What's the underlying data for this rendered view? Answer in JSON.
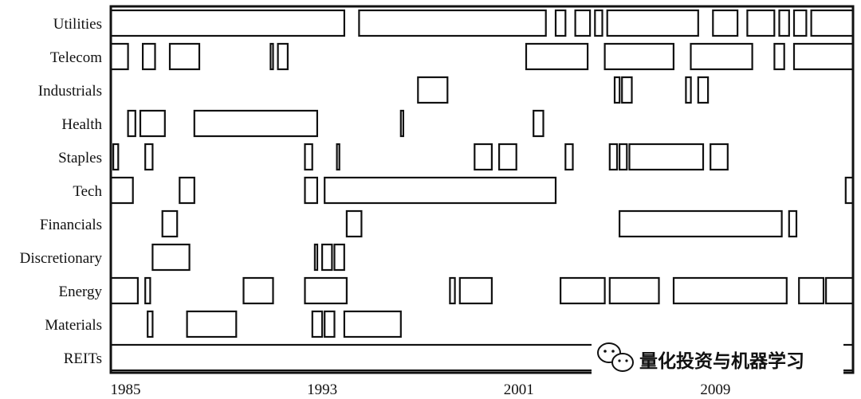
{
  "chart_data": {
    "type": "heatmap",
    "sectors": [
      "Utilities",
      "Telecom",
      "Industrials",
      "Health",
      "Staples",
      "Tech",
      "Financials",
      "Discretionary",
      "Energy",
      "Materials",
      "REITs"
    ],
    "x_ticks": [
      "1985",
      "1993",
      "2001",
      "2009"
    ],
    "x_tick_values": [
      1985,
      1993,
      2001,
      2009
    ],
    "xlim": [
      1984.4,
      2014.6
    ],
    "description_of_marks": "each row shows periods (start/end year) where a sector is held",
    "periods": {
      "Utilities": [
        [
          1984.4,
          1993.9
        ],
        [
          1994.5,
          2002.1
        ],
        [
          2002.5,
          2002.9
        ],
        [
          2003.3,
          2003.9
        ],
        [
          2004.1,
          2004.4
        ],
        [
          2004.6,
          2008.3
        ],
        [
          2008.9,
          2009.9
        ],
        [
          2010.3,
          2011.4
        ],
        [
          2011.6,
          2012.0
        ],
        [
          2012.2,
          2012.7
        ],
        [
          2012.9,
          2014.6
        ]
      ],
      "Telecom": [
        [
          1984.4,
          1985.1
        ],
        [
          1985.7,
          1986.2
        ],
        [
          1986.8,
          1988.0
        ],
        [
          1990.9,
          1991.0
        ],
        [
          1991.2,
          1991.6
        ],
        [
          2001.3,
          2003.8
        ],
        [
          2004.5,
          2007.3
        ],
        [
          2008.0,
          2010.5
        ],
        [
          2011.4,
          2011.8
        ],
        [
          2012.2,
          2014.6
        ]
      ],
      "Industrials": [
        [
          1996.9,
          1998.1
        ],
        [
          2004.9,
          2005.1
        ],
        [
          2005.2,
          2005.6
        ],
        [
          2007.8,
          2008.0
        ],
        [
          2008.3,
          2008.7
        ]
      ],
      "Health": [
        [
          1985.1,
          1985.4
        ],
        [
          1985.6,
          1986.6
        ],
        [
          1987.8,
          1992.8
        ],
        [
          1996.2,
          1996.3
        ],
        [
          2001.6,
          2002.0
        ]
      ],
      "Staples": [
        [
          1984.5,
          1984.7
        ],
        [
          1985.8,
          1986.1
        ],
        [
          1992.3,
          1992.6
        ],
        [
          1993.6,
          1993.7
        ],
        [
          1999.2,
          1999.9
        ],
        [
          2000.2,
          2000.9
        ],
        [
          2002.9,
          2003.2
        ],
        [
          2004.7,
          2005.0
        ],
        [
          2005.1,
          2005.4
        ],
        [
          2005.5,
          2008.5
        ],
        [
          2008.8,
          2009.5
        ]
      ],
      "Tech": [
        [
          1984.4,
          1985.3
        ],
        [
          1987.2,
          1987.8
        ],
        [
          1992.3,
          1992.8
        ],
        [
          1993.1,
          2002.5
        ],
        [
          2014.3,
          2014.6
        ]
      ],
      "Financials": [
        [
          1986.5,
          1987.1
        ],
        [
          1994.0,
          1994.6
        ],
        [
          2005.1,
          2011.7
        ],
        [
          2012.0,
          2012.3
        ]
      ],
      "Discretionary": [
        [
          1986.1,
          1987.6
        ],
        [
          1992.7,
          1992.8
        ],
        [
          1993.0,
          1993.4
        ],
        [
          1993.5,
          1993.9
        ]
      ],
      "Energy": [
        [
          1984.4,
          1985.5
        ],
        [
          1985.8,
          1986.0
        ],
        [
          1989.8,
          1991.0
        ],
        [
          1992.3,
          1994.0
        ],
        [
          1998.2,
          1998.4
        ],
        [
          1998.6,
          1999.9
        ],
        [
          2002.7,
          2004.5
        ],
        [
          2004.7,
          2006.7
        ],
        [
          2007.3,
          2011.9
        ],
        [
          2012.4,
          2013.4
        ],
        [
          2013.5,
          2014.6
        ]
      ],
      "Materials": [
        [
          1985.9,
          1986.1
        ],
        [
          1987.5,
          1989.5
        ],
        [
          1992.6,
          1993.0
        ],
        [
          1993.1,
          1993.5
        ],
        [
          1993.9,
          1996.2
        ]
      ],
      "REITs": [
        [
          1984.4,
          2010.2
        ],
        [
          2010.8,
          2014.6
        ]
      ]
    }
  },
  "watermark": {
    "text": "量化投资与机器学习"
  },
  "colors": {
    "line": "#111111",
    "background": "#ffffff"
  }
}
